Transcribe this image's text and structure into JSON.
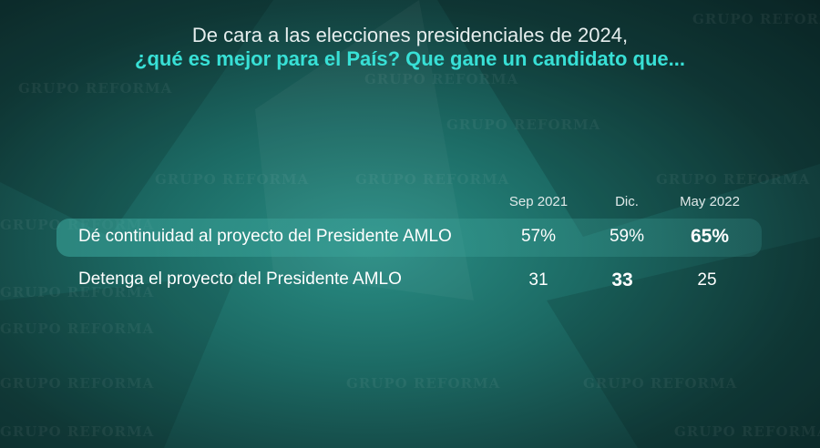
{
  "title_line1": "De cara a las elecciones presidenciales de 2024,",
  "title_line2": "¿qué es mejor para el País? Que gane un candidato que...",
  "watermark": "GRUPO REFORMA",
  "colors": {
    "accent": "#38e0d6",
    "background": "#1c6a64"
  },
  "chart_data": {
    "type": "table",
    "columns": [
      "Sep 2021",
      "Dic.",
      "May 2022"
    ],
    "rows": [
      {
        "label": "Dé continuidad al proyecto del Presidente AMLO",
        "values": [
          "57%",
          "59%",
          "65%"
        ],
        "highlighted_value": "May 2022"
      },
      {
        "label": "Detenga el proyecto del Presidente AMLO",
        "values": [
          "31",
          "33",
          "25"
        ],
        "highlighted_value": "Dic."
      }
    ]
  }
}
